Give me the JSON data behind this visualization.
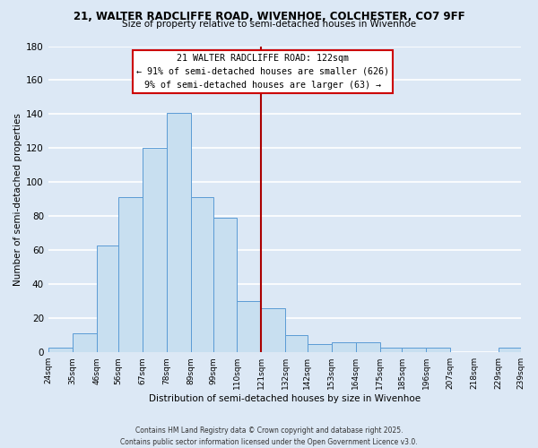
{
  "title1": "21, WALTER RADCLIFFE ROAD, WIVENHOE, COLCHESTER, CO7 9FF",
  "title2": "Size of property relative to semi-detached houses in Wivenhoe",
  "xlabel": "Distribution of semi-detached houses by size in Wivenhoe",
  "ylabel": "Number of semi-detached properties",
  "bin_labels": [
    "24sqm",
    "35sqm",
    "46sqm",
    "56sqm",
    "67sqm",
    "78sqm",
    "89sqm",
    "99sqm",
    "110sqm",
    "121sqm",
    "132sqm",
    "142sqm",
    "153sqm",
    "164sqm",
    "175sqm",
    "185sqm",
    "196sqm",
    "207sqm",
    "218sqm",
    "229sqm",
    "239sqm"
  ],
  "bin_edges": [
    24,
    35,
    46,
    56,
    67,
    78,
    89,
    99,
    110,
    121,
    132,
    142,
    153,
    164,
    175,
    185,
    196,
    207,
    218,
    229,
    239
  ],
  "counts": [
    3,
    11,
    63,
    91,
    120,
    141,
    91,
    79,
    30,
    26,
    10,
    5,
    6,
    6,
    3,
    3,
    3,
    0,
    0,
    3
  ],
  "bar_color": "#c8dff0",
  "bar_edge_color": "#5b9bd5",
  "bg_color": "#dce8f5",
  "grid_color": "#ffffff",
  "vline_x": 121,
  "vline_color": "#aa0000",
  "annotation_title": "21 WALTER RADCLIFFE ROAD: 122sqm",
  "annotation_line1": "← 91% of semi-detached houses are smaller (626)",
  "annotation_line2": "9% of semi-detached houses are larger (63) →",
  "annotation_box_color": "#ffffff",
  "annotation_box_edge": "#cc0000",
  "ylim": [
    0,
    180
  ],
  "yticks": [
    0,
    20,
    40,
    60,
    80,
    100,
    120,
    140,
    160,
    180
  ],
  "footnote1": "Contains HM Land Registry data © Crown copyright and database right 2025.",
  "footnote2": "Contains public sector information licensed under the Open Government Licence v3.0."
}
